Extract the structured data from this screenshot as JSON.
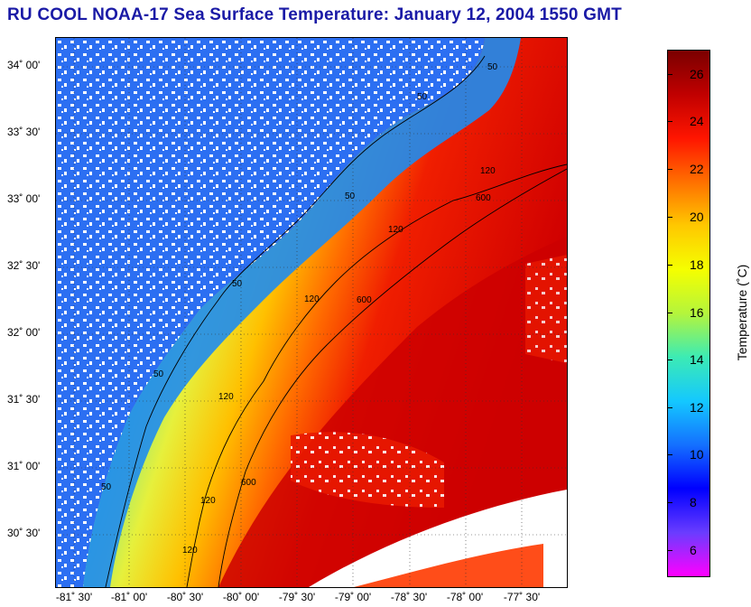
{
  "title": "RU COOL  NOAA-17  Sea Surface Temperature:  January 12, 2004 1550 GMT",
  "latitude_labels": [
    "34˚ 00'",
    "33˚ 30'",
    "33˚ 00'",
    "32˚ 30'",
    "32˚ 00'",
    "31˚ 30'",
    "31˚ 00'",
    "30˚ 30'"
  ],
  "longitude_labels": [
    "-81˚ 30'",
    "-81˚ 00'",
    "-80˚ 30'",
    "-80˚ 00'",
    "-79˚ 30'",
    "-79˚ 00'",
    "-78˚ 30'",
    "-78˚ 00'",
    "-77˚ 30'"
  ],
  "colorbar": {
    "label": "Temperature (˚C)",
    "ticks": [
      "26",
      "24",
      "22",
      "20",
      "18",
      "16",
      "14",
      "12",
      "10",
      "8",
      "6"
    ],
    "colors": [
      "#7a0000",
      "#c00000",
      "#ff1500",
      "#ff7000",
      "#ffc800",
      "#f5ff00",
      "#b4f53c",
      "#3cebb4",
      "#14c8ff",
      "#1470ff",
      "#0000ff",
      "#6a3cff",
      "#ff00ff"
    ]
  },
  "contours": {
    "labels": [
      "50",
      "50",
      "50",
      "50",
      "50",
      "50",
      "120",
      "120",
      "120",
      "120",
      "120",
      "120",
      "600",
      "600",
      "600"
    ]
  }
}
